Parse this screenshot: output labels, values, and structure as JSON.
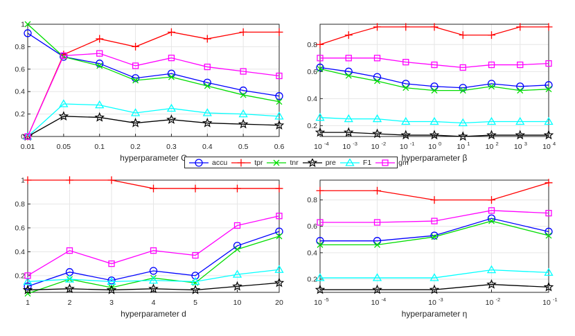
{
  "colors": {
    "accu": "#0000ff",
    "tpr": "#ff0000",
    "tnr": "#00dd00",
    "pre": "#000000",
    "F1": "#00ffff",
    "gm": "#ff00ff",
    "axis": "#262626",
    "grid": "#e6e6e6"
  },
  "legend": {
    "series": [
      {
        "key": "accu",
        "label": "accu",
        "marker": "circle"
      },
      {
        "key": "tpr",
        "label": "tpr",
        "marker": "plus"
      },
      {
        "key": "tnr",
        "label": "tnr",
        "marker": "x"
      },
      {
        "key": "pre",
        "label": "pre",
        "marker": "star"
      },
      {
        "key": "F1",
        "label": "F1",
        "marker": "triangle"
      },
      {
        "key": "gm",
        "label": "gm",
        "marker": "square"
      }
    ]
  },
  "chart_data": [
    {
      "type": "line",
      "id": "panel-c",
      "xlabel": "hyperparameter C",
      "tick_labels": [
        "0.01",
        "0.05",
        "0.1",
        "0.2",
        "0.3",
        "0.4",
        "0.5",
        "0.6"
      ],
      "ylim": [
        0,
        1
      ],
      "yticks": [
        0,
        0.2,
        0.4,
        0.6,
        0.8,
        1
      ],
      "ytick_labels": [
        "0",
        "0.2",
        "0.4",
        "0.6",
        "0.8",
        "1"
      ],
      "series": [
        {
          "name": "accu",
          "values": [
            0.92,
            0.71,
            0.65,
            0.52,
            0.56,
            0.48,
            0.41,
            0.36
          ]
        },
        {
          "name": "tpr",
          "values": [
            0.0,
            0.73,
            0.87,
            0.8,
            0.93,
            0.87,
            0.93,
            0.93
          ]
        },
        {
          "name": "tnr",
          "values": [
            1.0,
            0.71,
            0.63,
            0.5,
            0.53,
            0.45,
            0.37,
            0.31
          ]
        },
        {
          "name": "pre",
          "values": [
            0.0,
            0.18,
            0.17,
            0.12,
            0.15,
            0.12,
            0.11,
            0.1
          ]
        },
        {
          "name": "F1",
          "values": [
            0.0,
            0.29,
            0.28,
            0.21,
            0.25,
            0.21,
            0.2,
            0.18
          ]
        },
        {
          "name": "gm",
          "values": [
            0.0,
            0.72,
            0.74,
            0.63,
            0.7,
            0.62,
            0.58,
            0.54
          ]
        }
      ]
    },
    {
      "type": "line",
      "id": "panel-beta",
      "xlabel": "hyperparameter β",
      "tick_labels": [
        {
          "base": "10",
          "exp": "-4"
        },
        {
          "base": "10",
          "exp": "-3"
        },
        {
          "base": "10",
          "exp": "-2"
        },
        {
          "base": "10",
          "exp": "-1"
        },
        {
          "base": "10",
          "exp": "0"
        },
        {
          "base": "10",
          "exp": "1"
        },
        {
          "base": "10",
          "exp": "2"
        },
        {
          "base": "10",
          "exp": "3"
        },
        {
          "base": "10",
          "exp": "4"
        }
      ],
      "ylim": [
        0.12,
        0.95
      ],
      "yticks": [
        0.2,
        0.4,
        0.6,
        0.8
      ],
      "ytick_labels": [
        "0.2",
        "0.4",
        "0.6",
        "0.8"
      ],
      "series": [
        {
          "name": "accu",
          "values": [
            0.63,
            0.6,
            0.56,
            0.51,
            0.49,
            0.48,
            0.51,
            0.49,
            0.5
          ]
        },
        {
          "name": "tpr",
          "values": [
            0.8,
            0.87,
            0.93,
            0.93,
            0.93,
            0.87,
            0.87,
            0.93,
            0.93
          ]
        },
        {
          "name": "tnr",
          "values": [
            0.62,
            0.57,
            0.53,
            0.48,
            0.46,
            0.46,
            0.49,
            0.46,
            0.47
          ]
        },
        {
          "name": "pre",
          "values": [
            0.15,
            0.15,
            0.14,
            0.13,
            0.13,
            0.12,
            0.13,
            0.13,
            0.13
          ]
        },
        {
          "name": "F1",
          "values": [
            0.26,
            0.25,
            0.25,
            0.23,
            0.23,
            0.22,
            0.23,
            0.23,
            0.23
          ]
        },
        {
          "name": "gm",
          "values": [
            0.7,
            0.7,
            0.7,
            0.67,
            0.65,
            0.63,
            0.65,
            0.65,
            0.66
          ]
        }
      ]
    },
    {
      "type": "line",
      "id": "panel-d",
      "xlabel": "hyperparameter d",
      "tick_labels": [
        "1",
        "2",
        "3",
        "4",
        "5",
        "10",
        "20"
      ],
      "ylim": [
        0.06,
        1
      ],
      "yticks": [
        0.2,
        0.4,
        0.6,
        0.8,
        1
      ],
      "ytick_labels": [
        "0.2",
        "0.4",
        "0.6",
        "0.8",
        "1"
      ],
      "series": [
        {
          "name": "accu",
          "values": [
            0.11,
            0.23,
            0.16,
            0.24,
            0.2,
            0.45,
            0.57
          ]
        },
        {
          "name": "tpr",
          "values": [
            1.0,
            1.0,
            1.0,
            0.93,
            0.93,
            0.93,
            0.93
          ]
        },
        {
          "name": "tnr",
          "values": [
            0.05,
            0.17,
            0.1,
            0.18,
            0.14,
            0.42,
            0.53
          ]
        },
        {
          "name": "pre",
          "values": [
            0.08,
            0.09,
            0.08,
            0.09,
            0.08,
            0.11,
            0.14
          ]
        },
        {
          "name": "F1",
          "values": [
            0.15,
            0.17,
            0.15,
            0.16,
            0.15,
            0.21,
            0.25
          ]
        },
        {
          "name": "gm",
          "values": [
            0.2,
            0.41,
            0.3,
            0.41,
            0.37,
            0.62,
            0.7
          ]
        }
      ]
    },
    {
      "type": "line",
      "id": "panel-eta",
      "xlabel": "hyperparameter η",
      "tick_labels": [
        {
          "base": "10",
          "exp": "-5"
        },
        {
          "base": "10",
          "exp": "-4"
        },
        {
          "base": "10",
          "exp": "-3"
        },
        {
          "base": "10",
          "exp": "-2"
        },
        {
          "base": "10",
          "exp": "-1"
        }
      ],
      "ylim": [
        0.1,
        0.95
      ],
      "yticks": [
        0.2,
        0.4,
        0.6,
        0.8
      ],
      "ytick_labels": [
        "0.2",
        "0.4",
        "0.6",
        "0.8"
      ],
      "series": [
        {
          "name": "accu",
          "values": [
            0.49,
            0.49,
            0.53,
            0.66,
            0.56
          ]
        },
        {
          "name": "tpr",
          "values": [
            0.87,
            0.87,
            0.8,
            0.8,
            0.93
          ]
        },
        {
          "name": "tnr",
          "values": [
            0.46,
            0.46,
            0.52,
            0.64,
            0.53
          ]
        },
        {
          "name": "pre",
          "values": [
            0.12,
            0.12,
            0.12,
            0.16,
            0.14
          ]
        },
        {
          "name": "F1",
          "values": [
            0.21,
            0.21,
            0.21,
            0.27,
            0.25
          ]
        },
        {
          "name": "gm",
          "values": [
            0.63,
            0.63,
            0.64,
            0.72,
            0.7
          ]
        }
      ]
    }
  ]
}
